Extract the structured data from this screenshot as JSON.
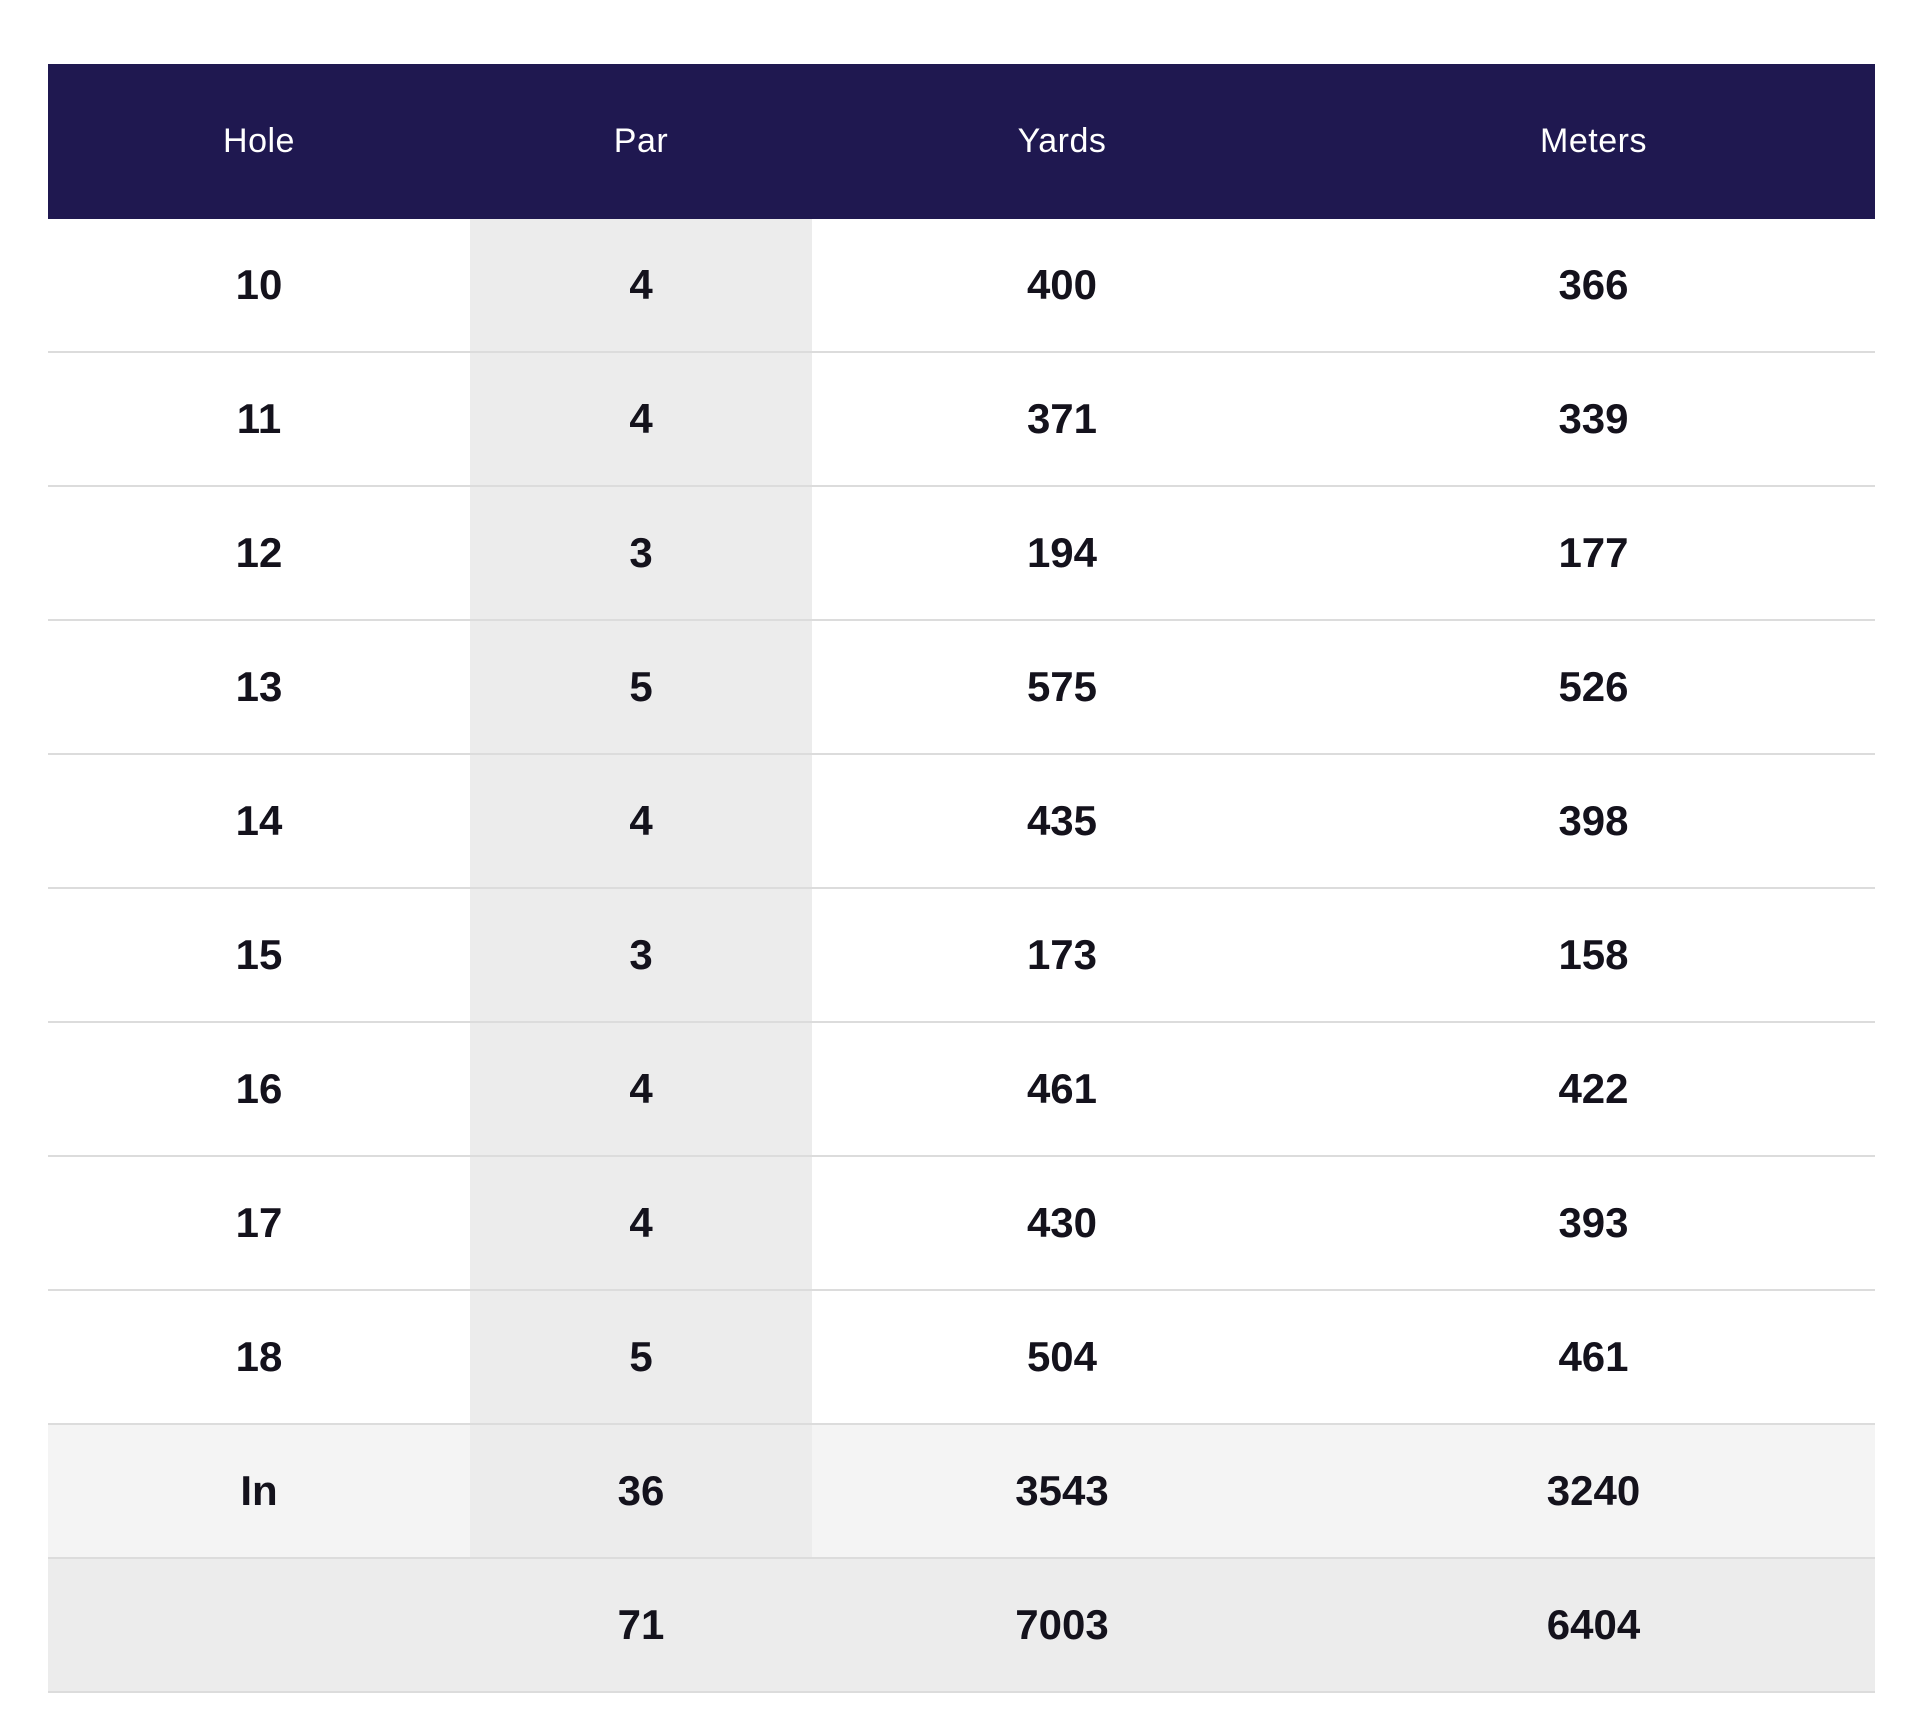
{
  "table": {
    "header": {
      "hole": "Hole",
      "par": "Par",
      "yards": "Yards",
      "meters": "Meters"
    },
    "rows": [
      {
        "hole": "10",
        "par": "4",
        "yards": "400",
        "meters": "366"
      },
      {
        "hole": "11",
        "par": "4",
        "yards": "371",
        "meters": "339"
      },
      {
        "hole": "12",
        "par": "3",
        "yards": "194",
        "meters": "177"
      },
      {
        "hole": "13",
        "par": "5",
        "yards": "575",
        "meters": "526"
      },
      {
        "hole": "14",
        "par": "4",
        "yards": "435",
        "meters": "398"
      },
      {
        "hole": "15",
        "par": "3",
        "yards": "173",
        "meters": "158"
      },
      {
        "hole": "16",
        "par": "4",
        "yards": "461",
        "meters": "422"
      },
      {
        "hole": "17",
        "par": "4",
        "yards": "430",
        "meters": "393"
      },
      {
        "hole": "18",
        "par": "5",
        "yards": "504",
        "meters": "461"
      }
    ],
    "subtotal": {
      "hole": "In",
      "par": "36",
      "yards": "3543",
      "meters": "3240"
    },
    "total": {
      "hole": "",
      "par": "71",
      "yards": "7003",
      "meters": "6404"
    }
  },
  "colors": {
    "header_bg": "#1f1850",
    "header_text": "#ffffff",
    "par_column_bg": "#ececec",
    "subtotal_bg": "#f4f4f4",
    "total_bg": "#ececec",
    "row_divider": "#dcdcdc",
    "cell_text": "#14121c"
  }
}
